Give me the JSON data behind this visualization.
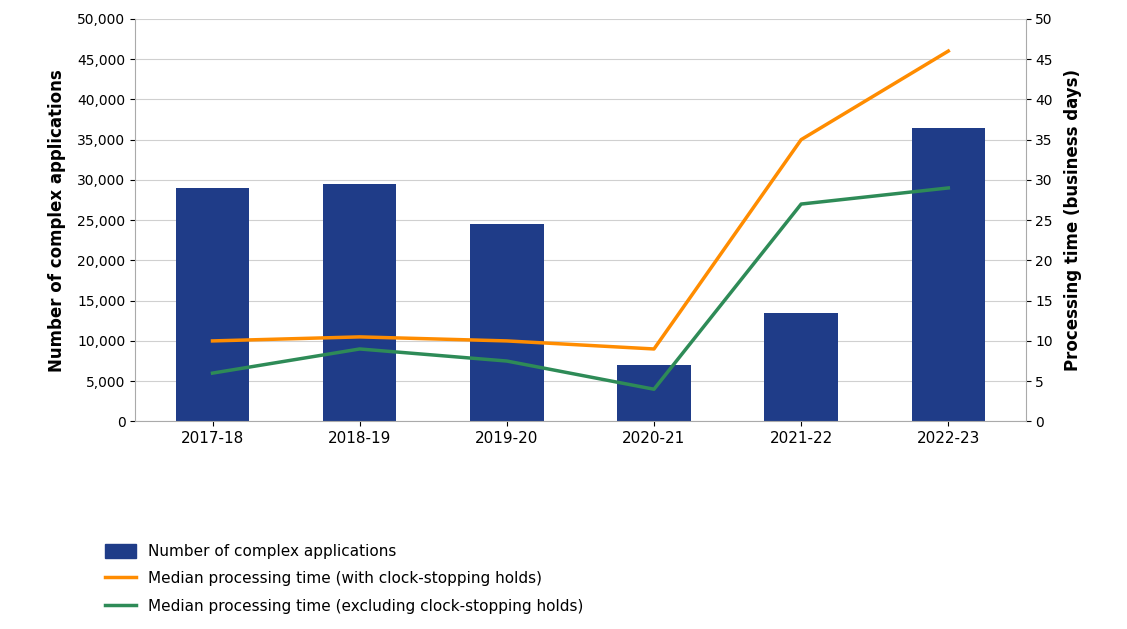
{
  "categories": [
    "2017-18",
    "2018-19",
    "2019-20",
    "2020-21",
    "2021-22",
    "2022-23"
  ],
  "bar_values": [
    29000,
    29500,
    24500,
    7000,
    13500,
    36500
  ],
  "bar_color": "#1F3C88",
  "line_with_holds": [
    10,
    10.5,
    10,
    9,
    35,
    46
  ],
  "line_excl_holds": [
    6,
    9,
    7.5,
    4,
    27,
    29
  ],
  "line_with_holds_color": "#FF8C00",
  "line_excl_holds_color": "#2E8B57",
  "ylabel_left": "Number of complex applications",
  "ylabel_right": "Processing time (business days)",
  "ylim_left": [
    0,
    50000
  ],
  "ylim_right": [
    0,
    50
  ],
  "yticks_left": [
    0,
    5000,
    10000,
    15000,
    20000,
    25000,
    30000,
    35000,
    40000,
    45000,
    50000
  ],
  "yticks_right": [
    0,
    5,
    10,
    15,
    20,
    25,
    30,
    35,
    40,
    45,
    50
  ],
  "legend_bar": "Number of complex applications",
  "legend_line1": "Median processing time (with clock-stopping holds)",
  "legend_line2": "Median processing time (excluding clock-stopping holds)",
  "bg_color": "#FFFFFF",
  "grid_color": "#D0D0D0"
}
